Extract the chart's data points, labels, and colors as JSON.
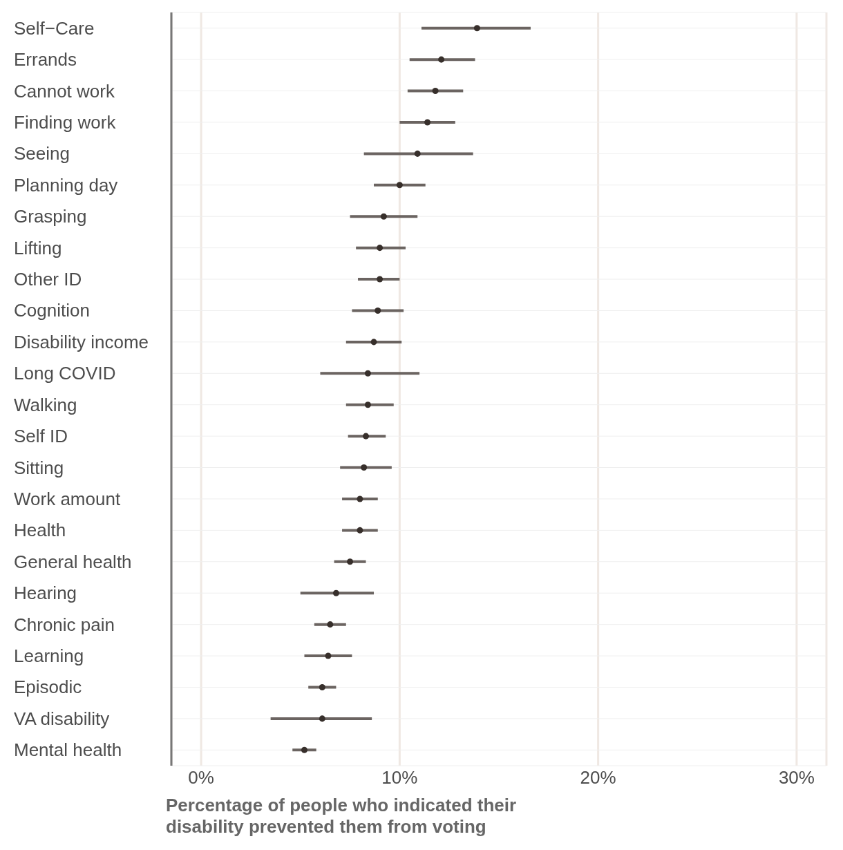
{
  "chart_data": {
    "type": "scatter",
    "xlabel": "Percentage of people who indicated their disability prevented them from voting",
    "categories": [
      "Self−Care",
      "Errands",
      "Cannot work",
      "Finding work",
      "Seeing",
      "Planning day",
      "Grasping",
      "Lifting",
      "Other ID",
      "Cognition",
      "Disability income",
      "Long COVID",
      "Walking",
      "Self ID",
      "Sitting",
      "Work amount",
      "Health",
      "General health",
      "Hearing",
      "Chronic pain",
      "Learning",
      "Episodic",
      "VA disability",
      "Mental health"
    ],
    "orientation": "horizontal",
    "series": [
      {
        "color": "#372f2b",
        "values": [
          13.9,
          12.1,
          11.8,
          11.4,
          10.9,
          10.0,
          9.2,
          9.0,
          9.0,
          8.9,
          8.7,
          8.4,
          8.4,
          8.3,
          8.2,
          8.0,
          8.0,
          7.5,
          6.8,
          6.5,
          6.4,
          6.1,
          6.1,
          5.2
        ],
        "errors": [
          [
            11.1,
            16.6
          ],
          [
            10.5,
            13.8
          ],
          [
            10.4,
            13.2
          ],
          [
            10.0,
            12.8
          ],
          [
            8.2,
            13.7
          ],
          [
            8.7,
            11.3
          ],
          [
            7.5,
            10.9
          ],
          [
            7.8,
            10.3
          ],
          [
            7.9,
            10.0
          ],
          [
            7.6,
            10.2
          ],
          [
            7.3,
            10.1
          ],
          [
            6.0,
            11.0
          ],
          [
            7.3,
            9.7
          ],
          [
            7.4,
            9.3
          ],
          [
            7.0,
            9.6
          ],
          [
            7.1,
            8.9
          ],
          [
            7.1,
            8.9
          ],
          [
            6.7,
            8.3
          ],
          [
            5.0,
            8.7
          ],
          [
            5.7,
            7.3
          ],
          [
            5.2,
            7.6
          ],
          [
            5.4,
            6.8
          ],
          [
            3.5,
            8.6
          ],
          [
            4.6,
            5.8
          ]
        ]
      }
    ],
    "xlim": [
      -1.5,
      31.5
    ],
    "xticks": [
      {
        "value": 0,
        "label": "0%"
      },
      {
        "value": 10,
        "label": "10%"
      },
      {
        "value": 20,
        "label": "20%"
      },
      {
        "value": 30,
        "label": "30%"
      }
    ],
    "grid": true,
    "marker": "circle"
  }
}
